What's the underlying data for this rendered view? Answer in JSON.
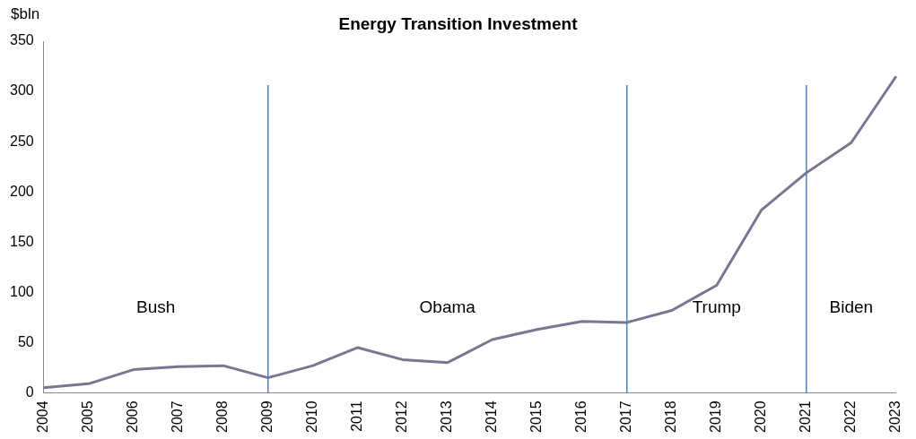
{
  "chart_data": {
    "type": "line",
    "title": "Energy Transition Investment",
    "ylabel": "$bln",
    "categories": [
      "2004",
      "2005",
      "2006",
      "2007",
      "2008",
      "2009",
      "2010",
      "2011",
      "2012",
      "2013",
      "2014",
      "2015",
      "2016",
      "2017",
      "2018",
      "2019",
      "2020",
      "2021",
      "2022",
      "2023"
    ],
    "series": [
      {
        "color": "#7b7592",
        "values": [
          5,
          9,
          23,
          26,
          27,
          15,
          27,
          45,
          33,
          30,
          53,
          63,
          71,
          70,
          82,
          107,
          182,
          219,
          249,
          315
        ]
      }
    ],
    "ylim": [
      0,
      350
    ],
    "yticks": [
      0,
      50,
      100,
      150,
      200,
      250,
      300,
      350
    ],
    "grid": false,
    "legend": false,
    "marker": "none",
    "line_style": "solid",
    "ref_lines": [
      {
        "axis": "x",
        "value": "2009",
        "color": "#4a86c5"
      },
      {
        "axis": "x",
        "value": "2017",
        "color": "#4a86c5"
      },
      {
        "axis": "x",
        "value": "2021",
        "color": "#4a86c5"
      }
    ],
    "annotations": [
      "Bush",
      "Obama",
      "Trump",
      "Biden"
    ]
  }
}
